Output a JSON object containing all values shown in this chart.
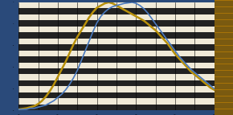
{
  "bg_outer_left": "#2a4a7a",
  "bg_outer_right": "#7a5a10",
  "plot_bg_light": "#f0ead8",
  "plot_bg_dark": "#1a1a1a",
  "line_blue": "#4a7abf",
  "line_gold": "#b8900a",
  "grid_dark_color": "#222222",
  "grid_light_color": "#e8e0c8",
  "n_grid_rows": 9,
  "xlim": [
    1900,
    2000
  ],
  "ylim": [
    0,
    1.0
  ],
  "cig_x": [
    1900,
    1902,
    1904,
    1906,
    1908,
    1910,
    1912,
    1914,
    1916,
    1918,
    1920,
    1922,
    1924,
    1926,
    1928,
    1930,
    1932,
    1934,
    1936,
    1938,
    1940,
    1942,
    1944,
    1946,
    1948,
    1950,
    1952,
    1954,
    1956,
    1958,
    1960,
    1962,
    1964,
    1966,
    1968,
    1970,
    1972,
    1974,
    1976,
    1978,
    1980,
    1982,
    1984,
    1986,
    1988,
    1990,
    1992,
    1994,
    1996,
    1998,
    2000
  ],
  "cig_y": [
    0.01,
    0.015,
    0.02,
    0.03,
    0.04,
    0.06,
    0.09,
    0.13,
    0.18,
    0.24,
    0.31,
    0.38,
    0.45,
    0.53,
    0.61,
    0.68,
    0.74,
    0.8,
    0.86,
    0.91,
    0.95,
    0.97,
    0.99,
    1.0,
    0.99,
    0.97,
    0.95,
    0.93,
    0.91,
    0.89,
    0.87,
    0.85,
    0.83,
    0.8,
    0.77,
    0.74,
    0.7,
    0.66,
    0.62,
    0.57,
    0.52,
    0.48,
    0.44,
    0.4,
    0.36,
    0.33,
    0.3,
    0.27,
    0.24,
    0.21,
    0.19
  ],
  "cancer_x": [
    1900,
    1902,
    1904,
    1906,
    1908,
    1910,
    1912,
    1914,
    1916,
    1918,
    1920,
    1922,
    1924,
    1926,
    1928,
    1930,
    1932,
    1934,
    1936,
    1938,
    1940,
    1942,
    1944,
    1946,
    1948,
    1950,
    1952,
    1954,
    1956,
    1958,
    1960,
    1962,
    1964,
    1966,
    1968,
    1970,
    1972,
    1974,
    1976,
    1978,
    1980,
    1982,
    1984,
    1986,
    1988,
    1990,
    1992,
    1994,
    1996,
    1998,
    2000
  ],
  "cancer_y": [
    0.01,
    0.01,
    0.01,
    0.02,
    0.02,
    0.03,
    0.04,
    0.05,
    0.07,
    0.09,
    0.12,
    0.15,
    0.19,
    0.24,
    0.3,
    0.37,
    0.46,
    0.55,
    0.64,
    0.73,
    0.81,
    0.87,
    0.91,
    0.94,
    0.96,
    0.97,
    0.98,
    0.99,
    0.995,
    1.0,
    0.99,
    0.97,
    0.94,
    0.9,
    0.85,
    0.8,
    0.75,
    0.7,
    0.65,
    0.6,
    0.55,
    0.5,
    0.46,
    0.42,
    0.38,
    0.35,
    0.32,
    0.29,
    0.26,
    0.23,
    0.2
  ]
}
